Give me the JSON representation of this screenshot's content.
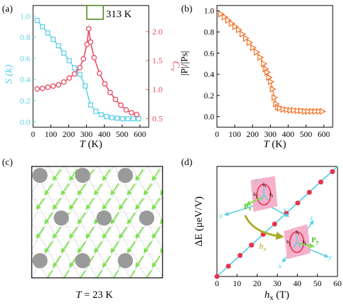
{
  "colors": {
    "cyan": "#5ad0e6",
    "red": "#e8475c",
    "orange": "#f26b1d",
    "dot": "#e8314a",
    "axis": "#000000",
    "arrow_green": "#7be34b",
    "site_gray": "#9a9a9a",
    "pink_plane": "#f4a9c7",
    "highlight_box": "#4e8a1e"
  },
  "chart_data": [
    {
      "type": "line",
      "panel_label": "(a)",
      "xlabel": {
        "symbol": "T",
        "unit": " (K)"
      },
      "xlim": [
        0,
        650
      ],
      "xticks": [
        "0",
        "100",
        "200",
        "300",
        "400",
        "500",
        "600"
      ],
      "ylim_left": [
        -0.05,
        1.1
      ],
      "yticks_left": [
        "0.0",
        "0.2",
        "0.4",
        "0.6",
        "0.8",
        "1.0"
      ],
      "ylim_right": [
        0.35,
        2.45
      ],
      "yticks_right": [
        "0.5",
        "1.0",
        "1.5",
        "2.0"
      ],
      "annotation": "313 K",
      "series": [
        {
          "axis": "left",
          "ylabel": "S (k)",
          "marker": "square",
          "x": [
            23,
            53,
            83,
            113,
            143,
            173,
            203,
            233,
            263,
            293,
            323,
            353,
            383,
            413,
            443,
            473,
            503,
            533,
            563,
            593
          ],
          "y": [
            0.96,
            0.9,
            0.84,
            0.78,
            0.72,
            0.65,
            0.58,
            0.51,
            0.45,
            0.34,
            0.16,
            0.1,
            0.07,
            0.05,
            0.04,
            0.035,
            0.03,
            0.03,
            0.03,
            0.03
          ]
        },
        {
          "axis": "right",
          "ylabel": "C_v",
          "marker": "circle",
          "x": [
            23,
            53,
            83,
            113,
            143,
            173,
            203,
            233,
            263,
            283,
            303,
            313,
            323,
            343,
            373,
            403,
            433,
            463,
            493,
            523,
            553,
            583
          ],
          "y": [
            1.01,
            1.02,
            1.04,
            1.06,
            1.08,
            1.13,
            1.2,
            1.27,
            1.38,
            1.53,
            1.78,
            2.05,
            1.82,
            1.55,
            1.28,
            1.1,
            0.95,
            0.83,
            0.73,
            0.65,
            0.6,
            0.57
          ]
        }
      ]
    },
    {
      "type": "line",
      "panel_label": "(b)",
      "xlabel": {
        "symbol": "T",
        "unit": " (K)"
      },
      "ylabel": "|P|/|Ps|",
      "xlim": [
        0,
        650
      ],
      "xticks": [
        "0",
        "100",
        "200",
        "300",
        "400",
        "500",
        "600"
      ],
      "ylim": [
        -0.1,
        1.05
      ],
      "yticks": [
        "0.0",
        "0.2",
        "0.4",
        "0.6",
        "0.8",
        "1.0"
      ],
      "series": [
        {
          "marker": "triangle-right",
          "x": [
            23,
            43,
            63,
            83,
            103,
            123,
            143,
            163,
            183,
            203,
            223,
            243,
            263,
            273,
            283,
            293,
            303,
            313,
            323,
            333,
            343,
            353,
            373,
            393,
            413,
            433,
            453,
            473,
            493,
            513,
            533,
            553,
            573,
            593
          ],
          "y": [
            0.97,
            0.94,
            0.91,
            0.88,
            0.85,
            0.82,
            0.78,
            0.74,
            0.7,
            0.65,
            0.61,
            0.56,
            0.5,
            0.45,
            0.42,
            0.37,
            0.33,
            0.26,
            0.18,
            0.12,
            0.09,
            0.08,
            0.07,
            0.065,
            0.06,
            0.06,
            0.055,
            0.055,
            0.05,
            0.05,
            0.05,
            0.05,
            0.05,
            0.05
          ]
        }
      ]
    },
    {
      "type": "scatter",
      "panel_label": "(d)",
      "xlabel": {
        "symbol": "h",
        "sub": "x",
        "unit": " (T)"
      },
      "ylabel": "ΔE (μeV/V)",
      "xlim": [
        0,
        60
      ],
      "xticks": [
        "0",
        "10",
        "20",
        "30",
        "40",
        "50",
        "60"
      ],
      "ylim": [
        0,
        3.4
      ],
      "series": [
        {
          "name": "fit",
          "type": "line",
          "x": [
            0,
            60
          ],
          "y": [
            0,
            3.4
          ]
        },
        {
          "name": "points",
          "type": "scatter",
          "x": [
            0,
            5.7,
            11.5,
            17.2,
            23,
            28.7,
            34.5,
            40.2,
            46,
            51.7,
            57.5
          ],
          "y": [
            0,
            0.32,
            0.65,
            0.97,
            1.3,
            1.62,
            1.95,
            2.27,
            2.6,
            2.92,
            3.24
          ]
        }
      ],
      "inset_text": {
        "sites": [
          "s",
          "i",
          "s",
          "j",
          "s",
          "i"
        ],
        "pol_x": "P",
        "pol_x_sub": "x",
        "pol_y": "P",
        "pol_y_sub": "y",
        "field": "h",
        "field_sub": "x",
        "axis_x": "x",
        "axis_y": "y",
        "axis_z": "z"
      }
    }
  ],
  "panel_c": {
    "panel_label": "(c)",
    "caption_symbol": "T",
    "caption_rest": " = 23 K"
  }
}
